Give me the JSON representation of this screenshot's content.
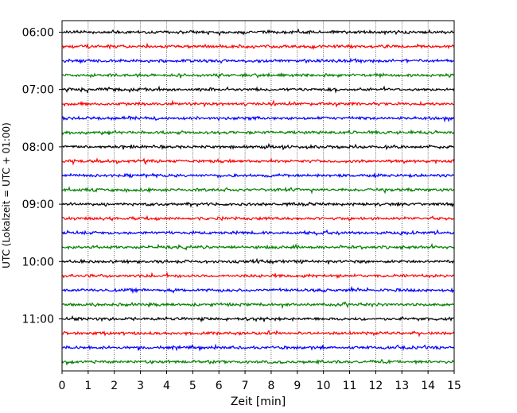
{
  "chart_data": {
    "type": "line",
    "title": "",
    "xlabel": "Zeit  [min]",
    "ylabel": "UTC (Lokalzeit = UTC + 01:00)",
    "xlim": [
      0,
      15
    ],
    "x_ticks": [
      0,
      1,
      2,
      3,
      4,
      5,
      6,
      7,
      8,
      9,
      10,
      11,
      12,
      13,
      14,
      15
    ],
    "x_tick_labels": [
      "0",
      "1",
      "2",
      "3",
      "4",
      "5",
      "6",
      "7",
      "8",
      "9",
      "10",
      "11",
      "12",
      "13",
      "14",
      "15"
    ],
    "y_tick_labels": [
      "06:00",
      "07:00",
      "08:00",
      "09:00",
      "10:00",
      "11:00"
    ],
    "grid": "vertical dotted",
    "trace_interval_minutes": 15,
    "trace_start_times": [
      "06:00",
      "06:15",
      "06:30",
      "06:45",
      "07:00",
      "07:15",
      "07:30",
      "07:45",
      "08:00",
      "08:15",
      "08:30",
      "08:45",
      "09:00",
      "09:15",
      "09:30",
      "09:45",
      "10:00",
      "10:15",
      "10:30",
      "10:45",
      "11:00",
      "11:15",
      "11:30",
      "11:45"
    ],
    "color_cycle": [
      "#000000",
      "#ff0000",
      "#0000ff",
      "#008000"
    ]
  }
}
